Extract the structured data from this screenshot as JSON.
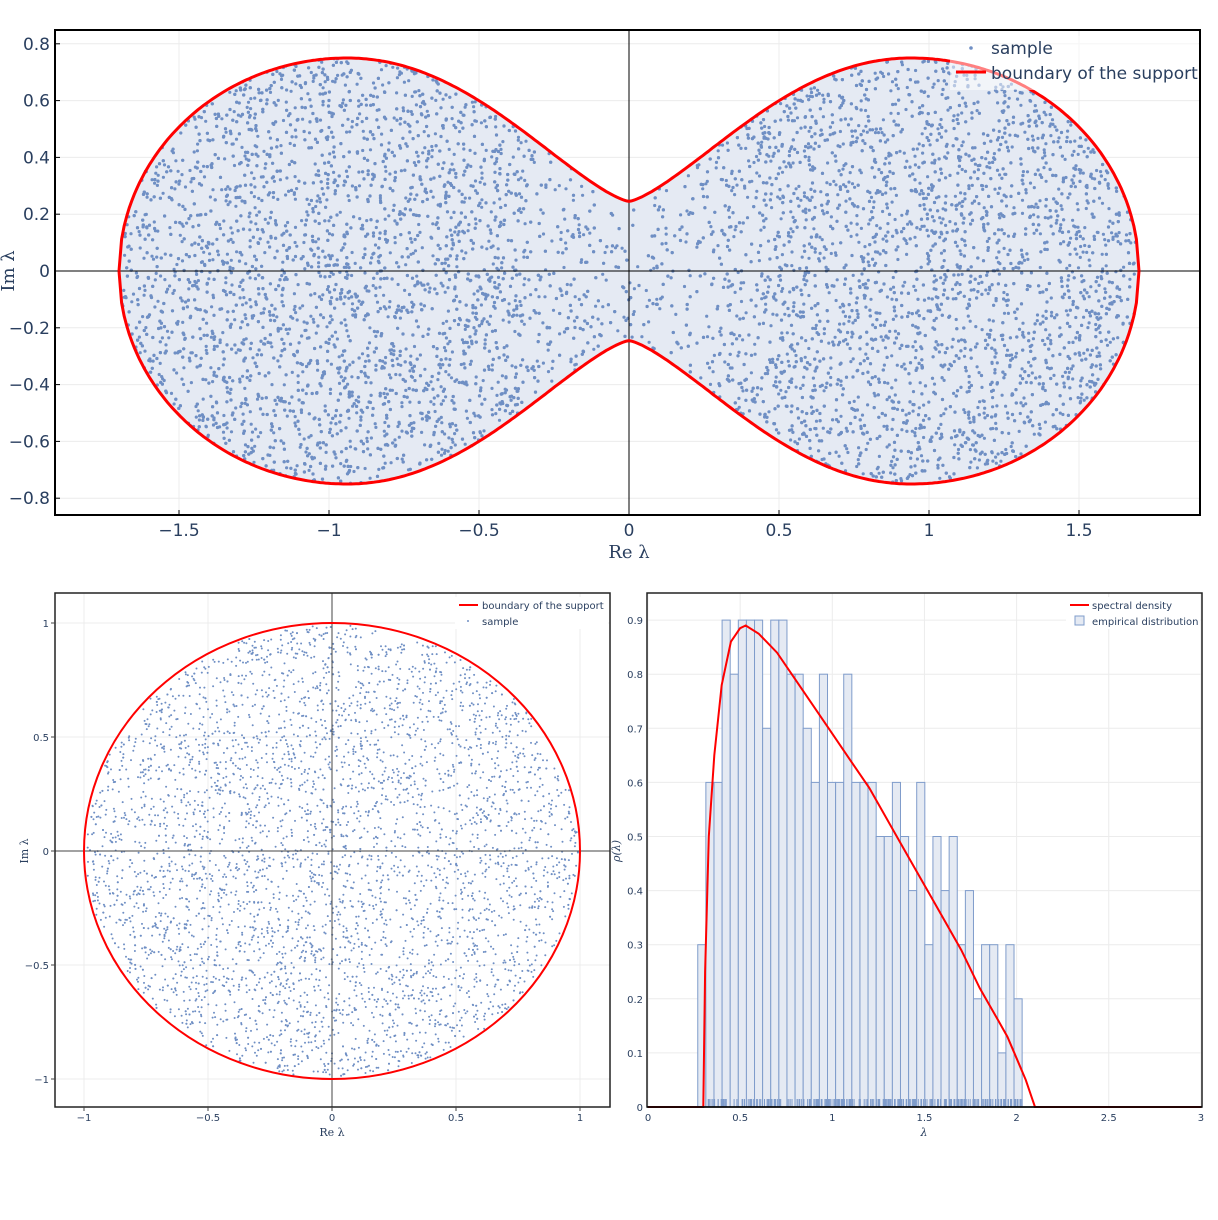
{
  "colors": {
    "boundary": "#ff0000",
    "sample": "#6f8fc4",
    "fill": "#e5eaf3",
    "hist_fill": "#e5eaf3",
    "hist_line": "#7f9ccb",
    "grid": "#ececec",
    "axis_text": "#2a3f5f"
  },
  "chart_data": [
    {
      "type": "scatter",
      "id": "top",
      "title": "",
      "xlabel": "Re λ",
      "ylabel": "Im λ",
      "xlim": [
        -1.913,
        1.903
      ],
      "ylim": [
        -0.859,
        0.849
      ],
      "xticks": [
        -1.5,
        -1,
        -0.5,
        0,
        0.5,
        1,
        1.5
      ],
      "xtick_labels": [
        "−1.5",
        "−1",
        "−0.5",
        "0",
        "0.5",
        "1",
        "1.5"
      ],
      "yticks": [
        0.8,
        0.6,
        0.4,
        0.2,
        0,
        -0.2,
        -0.4,
        -0.6,
        -0.8
      ],
      "ytick_labels": [
        "0.8",
        "0.6",
        "0.4",
        "0.2",
        "0",
        "−0.2",
        "−0.4",
        "−0.6",
        "−0.8"
      ],
      "legend": [
        {
          "label": "sample",
          "kind": "marker"
        },
        {
          "label": "boundary of the support",
          "kind": "line"
        }
      ],
      "legend_position": "top-right",
      "grid": true,
      "boundary_shape": {
        "description": "two-lobed (peanut) support",
        "x_extent": 1.7,
        "lobe_max_im": 0.75,
        "lobe_center_re": 0.94,
        "neck_im": 0.245
      },
      "sample_count_approx": 12000
    },
    {
      "type": "scatter",
      "id": "bottom_left",
      "title": "",
      "xlabel": "Re λ",
      "ylabel": "Im λ",
      "xlim": [
        -1.12,
        1.12
      ],
      "ylim": [
        -1.12,
        1.12
      ],
      "xticks": [
        -1,
        -0.5,
        0,
        0.5,
        1
      ],
      "xtick_labels": [
        "−1",
        "−0.5",
        "0",
        "0.5",
        "1"
      ],
      "yticks": [
        1,
        0.5,
        0,
        -0.5,
        -1
      ],
      "ytick_labels": [
        "1",
        "0.5",
        "0",
        "−0.5",
        "−1"
      ],
      "legend": [
        {
          "label": "boundary of the support",
          "kind": "line"
        },
        {
          "label": "sample",
          "kind": "marker"
        }
      ],
      "legend_position": "top-right",
      "grid": true,
      "boundary_shape": {
        "description": "unit circle",
        "radius": 1
      },
      "sample_count_approx": 5000
    },
    {
      "type": "bar",
      "id": "bottom_right",
      "title": "",
      "xlabel": "λ",
      "ylabel": "ρ(λ)",
      "xlim": [
        0,
        3
      ],
      "ylim": [
        0,
        0.95
      ],
      "xticks": [
        0,
        0.5,
        1,
        1.5,
        2,
        2.5,
        3
      ],
      "xtick_labels": [
        "0",
        "0.5",
        "1",
        "1.5",
        "2",
        "2.5",
        "3"
      ],
      "yticks": [
        0,
        0.1,
        0.2,
        0.3,
        0.4,
        0.5,
        0.6,
        0.7,
        0.8,
        0.9
      ],
      "ytick_labels": [
        "0",
        "0.1",
        "0.2",
        "0.3",
        "0.4",
        "0.5",
        "0.6",
        "0.7",
        "0.8",
        "0.9"
      ],
      "legend": [
        {
          "label": "spectral density",
          "kind": "line"
        },
        {
          "label": "empirical distribution",
          "kind": "box"
        }
      ],
      "legend_position": "top-right",
      "grid": true,
      "histogram": {
        "bin_start": 0.27,
        "bin_width": 0.044,
        "values": [
          0.3,
          0.6,
          0.6,
          0.9,
          0.8,
          0.9,
          0.9,
          0.9,
          0.7,
          0.9,
          0.9,
          0.8,
          0.8,
          0.7,
          0.6,
          0.8,
          0.6,
          0.6,
          0.8,
          0.6,
          0.6,
          0.6,
          0.5,
          0.5,
          0.6,
          0.5,
          0.4,
          0.6,
          0.3,
          0.5,
          0.4,
          0.5,
          0.3,
          0.4,
          0.2,
          0.3,
          0.3,
          0.1,
          0.3,
          0.2
        ]
      },
      "density_curve": {
        "support": [
          0.3,
          2.1
        ],
        "peak": {
          "x": 0.53,
          "y": 0.89
        },
        "points": [
          [
            0,
            0
          ],
          [
            0.3,
            0
          ],
          [
            0.31,
            0.25
          ],
          [
            0.33,
            0.5
          ],
          [
            0.36,
            0.65
          ],
          [
            0.4,
            0.78
          ],
          [
            0.45,
            0.86
          ],
          [
            0.5,
            0.885
          ],
          [
            0.53,
            0.89
          ],
          [
            0.6,
            0.875
          ],
          [
            0.7,
            0.84
          ],
          [
            0.8,
            0.79
          ],
          [
            0.9,
            0.74
          ],
          [
            1.0,
            0.69
          ],
          [
            1.1,
            0.64
          ],
          [
            1.2,
            0.59
          ],
          [
            1.3,
            0.53
          ],
          [
            1.4,
            0.47
          ],
          [
            1.5,
            0.41
          ],
          [
            1.6,
            0.35
          ],
          [
            1.7,
            0.29
          ],
          [
            1.8,
            0.22
          ],
          [
            1.9,
            0.16
          ],
          [
            1.95,
            0.13
          ],
          [
            2.0,
            0.09
          ],
          [
            2.05,
            0.05
          ],
          [
            2.08,
            0.02
          ],
          [
            2.1,
            0
          ],
          [
            3.0,
            0
          ]
        ]
      },
      "rug": true
    }
  ]
}
